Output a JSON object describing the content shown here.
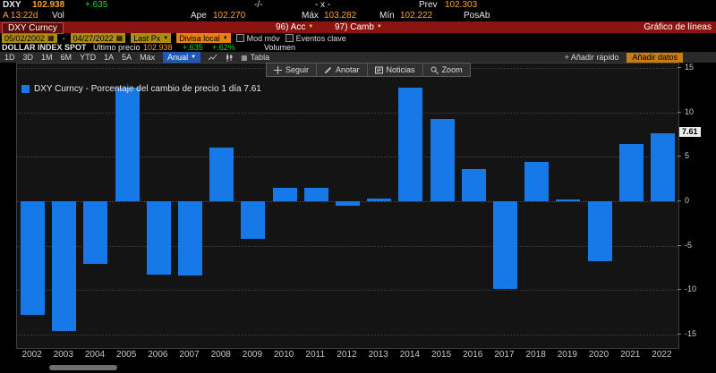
{
  "colors": {
    "amber": "#ffa028",
    "green": "#00e525",
    "bar_blue": "#1778e8",
    "red_bar": "#8c1410",
    "orange_button": "#c87e0f"
  },
  "quote_line": {
    "ticker": "DXY",
    "price": "102.938",
    "change": "+.635",
    "bid_ask": "-/-",
    "size": "- x -",
    "prev_label": "Prev",
    "prev_value": "102.303"
  },
  "stats_line": {
    "time": "A 13:22d",
    "vol_label": "Vol",
    "open_label": "Ape",
    "open_value": "102.270",
    "high_label": "Máx",
    "high_value": "103.282",
    "low_label": "Mín",
    "low_value": "102.222",
    "close_label": "PosAb"
  },
  "command_bar": {
    "security_field": "DXY Curncy",
    "menu_acc": "96) Acc",
    "menu_camb": "97) Camb",
    "screen_title": "Gráfico de líneas"
  },
  "settings_bar": {
    "date_from": "05/02/2002",
    "date_separator": "-",
    "date_to": "04/27/2022",
    "price_source": "Last Px",
    "currency": "Divisa local",
    "mov_avg": "Mod móv",
    "key_events": "Eventos clave"
  },
  "security_info": {
    "name": "DOLLAR INDEX SPOT",
    "last_label": "Último precio",
    "last_value": "102.938",
    "change": "+.635",
    "change_pct": "+.62%",
    "volume_label": "Volumen"
  },
  "period_bar": {
    "tabs": [
      "1D",
      "3D",
      "1M",
      "6M",
      "YTD",
      "1A",
      "5A",
      "Máx"
    ],
    "interval": "Anual",
    "table_label": "Tabla",
    "add_quick": "+ Añadir rápido",
    "add_data": "Añadir datos"
  },
  "chart_toolbar": {
    "items": [
      "Seguir",
      "Anotar",
      "Noticias",
      "Zoom"
    ]
  },
  "legend": {
    "text": "DXY Curncy - Porcentaje del cambio de precio 1 día 7.61"
  },
  "chart_data": {
    "type": "bar",
    "title": "DXY Curncy - Porcentaje del cambio de precio 1 día",
    "categories": [
      "2002",
      "2003",
      "2004",
      "2005",
      "2006",
      "2007",
      "2008",
      "2009",
      "2010",
      "2011",
      "2012",
      "2013",
      "2014",
      "2015",
      "2016",
      "2017",
      "2018",
      "2019",
      "2020",
      "2021",
      "2022"
    ],
    "values": [
      -12.8,
      -14.6,
      -7.0,
      12.8,
      -8.2,
      -8.3,
      6.0,
      -4.2,
      1.5,
      1.5,
      -0.5,
      0.3,
      12.8,
      9.3,
      3.6,
      -9.9,
      4.4,
      0.2,
      -6.7,
      6.4,
      7.61
    ],
    "xlabel": "",
    "ylabel": "",
    "ylim": [
      -15,
      15
    ],
    "yticks": [
      15,
      10,
      5,
      0,
      -5,
      -10,
      -15
    ],
    "last_value_label": "7.61",
    "grid": "horizontal-dotted",
    "legend_position": "top-left",
    "bar_color": "#1778e8"
  }
}
